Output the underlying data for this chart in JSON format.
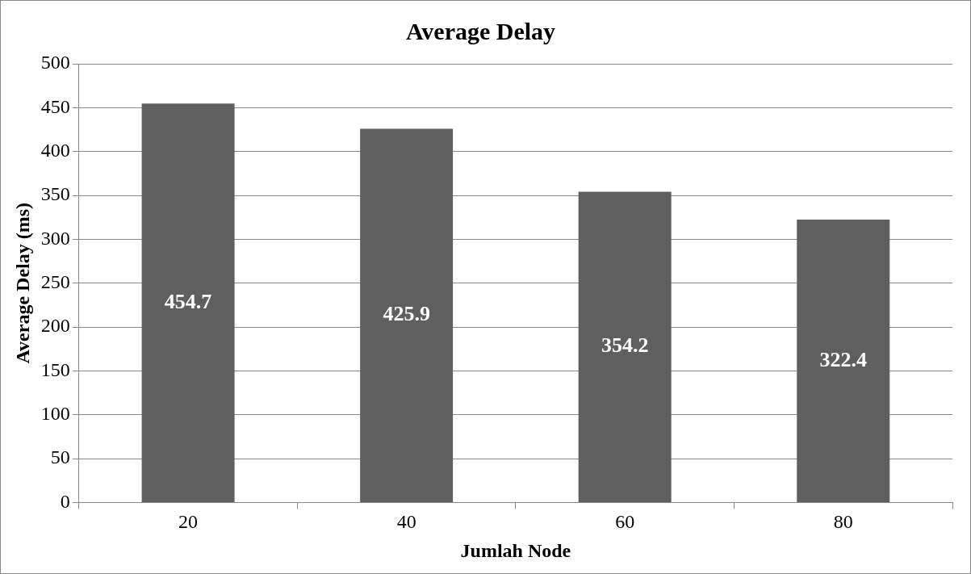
{
  "chart_data": {
    "type": "bar",
    "title": "Average Delay",
    "xlabel": "Jumlah Node",
    "ylabel": "Average Delay (ms)",
    "categories": [
      "20",
      "40",
      "60",
      "80"
    ],
    "values": [
      454.7,
      425.9,
      354.2,
      322.4
    ],
    "color": "#5f5f5f",
    "ylim": [
      0,
      500
    ],
    "yticks": [
      0,
      50,
      100,
      150,
      200,
      250,
      300,
      350,
      400,
      450,
      500
    ],
    "grid": "y",
    "data_labels": true
  }
}
